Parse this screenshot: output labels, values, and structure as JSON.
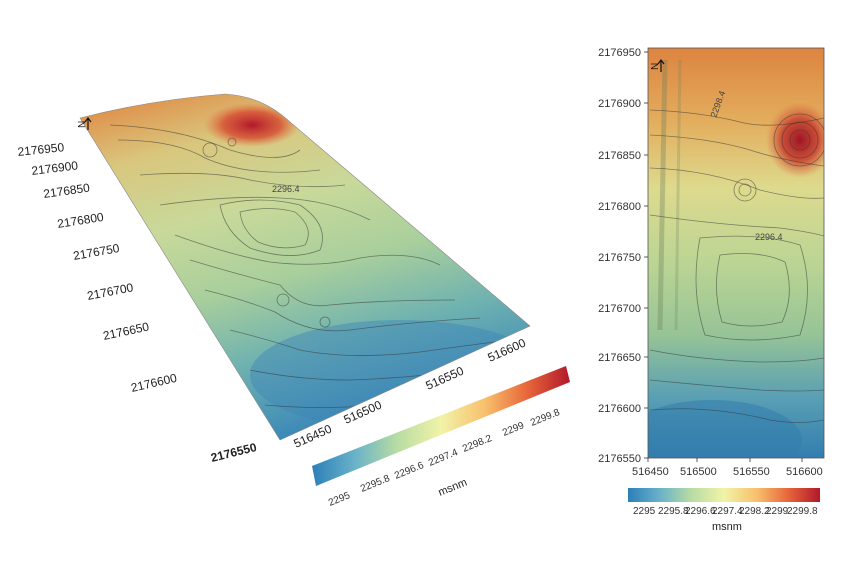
{
  "left_view": {
    "north_symbol": "N",
    "y_ticks": [
      "2176950",
      "2176900",
      "2176850",
      "2176800",
      "2176750",
      "2176700",
      "2176650",
      "2176600",
      "2176550"
    ],
    "x_ticks": [
      "516450",
      "516500",
      "516550",
      "516600"
    ],
    "contour_label": "2296.4"
  },
  "right_view": {
    "north_symbol": "N",
    "y_ticks": [
      "2176950",
      "2176900",
      "2176850",
      "2176800",
      "2176750",
      "2176700",
      "2176650",
      "2176600",
      "2176550"
    ],
    "x_ticks": [
      "516450",
      "516500",
      "516550",
      "516600"
    ],
    "contour_labels": [
      "2296.4",
      "2298.4"
    ]
  },
  "colorbar": {
    "unit": "msnm",
    "ticks": [
      "2295",
      "2295.8",
      "2296.6",
      "2297.4",
      "2298.2",
      "2299",
      "2299.8"
    ],
    "colors": [
      "#2c7fb8",
      "#6bb3c9",
      "#b8dca3",
      "#f1f3a8",
      "#f8c06c",
      "#e8683b",
      "#b2182b"
    ]
  }
}
